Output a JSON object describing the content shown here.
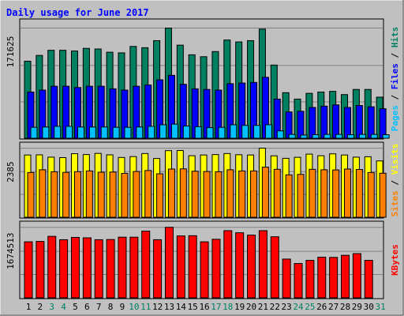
{
  "chart_data": {
    "type": "bar",
    "title": "Daily usage for June 2017",
    "categories": [
      "1",
      "2",
      "3",
      "4",
      "5",
      "6",
      "7",
      "8",
      "9",
      "10",
      "11",
      "12",
      "13",
      "14",
      "15",
      "16",
      "17",
      "18",
      "19",
      "20",
      "21",
      "22",
      "23",
      "24",
      "25",
      "26",
      "27",
      "28",
      "29",
      "30",
      "31"
    ],
    "weekend_days": [
      "3",
      "4",
      "10",
      "11",
      "17",
      "18",
      "24",
      "25",
      "31"
    ],
    "panels": [
      {
        "name": "hits-files-pages",
        "scale_label": "171625",
        "ymax": 171625,
        "grid": true,
        "right_label": [
          {
            "text": "Pages",
            "color": "#00c0ff"
          },
          {
            "text": " / ",
            "color": "#000000"
          },
          {
            "text": "Files",
            "color": "#0000ff"
          },
          {
            "text": " / ",
            "color": "#000000"
          },
          {
            "text": "Hits",
            "color": "#008060"
          }
        ],
        "series": [
          {
            "name": "Hits",
            "color": "#008060",
            "values": [
              120000,
              129000,
              137000,
              137000,
              136000,
              140000,
              139000,
              134000,
              133000,
              143000,
              141000,
              152000,
              171625,
              145000,
              130000,
              127000,
              135000,
              153000,
              150000,
              152000,
              170000,
              114000,
              71000,
              61000,
              70000,
              72000,
              73000,
              68000,
              76000,
              76000,
              64000
            ]
          },
          {
            "name": "Files",
            "color": "#0000ff",
            "values": [
              72000,
              75000,
              81000,
              81000,
              79000,
              81000,
              81000,
              77000,
              75000,
              81000,
              83000,
              91000,
              98000,
              84000,
              77000,
              76000,
              75000,
              85000,
              86000,
              87000,
              95000,
              61000,
              41000,
              42000,
              48000,
              50000,
              52000,
              48000,
              51000,
              49000,
              46000
            ]
          },
          {
            "name": "Pages",
            "color": "#00c0ff",
            "values": [
              17000,
              17500,
              18500,
              18500,
              17500,
              17500,
              17500,
              17000,
              17000,
              17500,
              18500,
              21000,
              22000,
              19000,
              18000,
              16500,
              17000,
              21000,
              20000,
              20000,
              21000,
              11500,
              6000,
              5000,
              5500,
              6000,
              6000,
              5500,
              6000,
              6000,
              5500
            ]
          }
        ]
      },
      {
        "name": "visits-sites",
        "scale_label": "2385",
        "ymax": 2385,
        "grid": true,
        "right_label": [
          {
            "text": "Sites",
            "color": "#ff8000"
          },
          {
            "text": " / ",
            "color": "#000000"
          },
          {
            "text": "Visits",
            "color": "#ffff00"
          }
        ],
        "series": [
          {
            "name": "Visits",
            "color": "#ffff00",
            "values": [
              2150,
              2155,
              2075,
              2060,
              2195,
              2165,
              2205,
              2155,
              2065,
              2095,
              2200,
              2030,
              2300,
              2305,
              2125,
              2150,
              2165,
              2200,
              2160,
              2150,
              2385,
              2120,
              2035,
              2070,
              2180,
              2125,
              2190,
              2150,
              2075,
              2090,
              1945
            ]
          },
          {
            "name": "Sites",
            "color": "#ff8000",
            "values": [
              1545,
              1640,
              1570,
              1550,
              1575,
              1600,
              1555,
              1560,
              1515,
              1580,
              1615,
              1500,
              1665,
              1670,
              1590,
              1580,
              1570,
              1640,
              1600,
              1600,
              1730,
              1655,
              1465,
              1480,
              1655,
              1640,
              1635,
              1665,
              1650,
              1545,
              1520
            ]
          }
        ]
      },
      {
        "name": "kbytes",
        "scale_label": "1674513",
        "ymax": 1674513,
        "grid": true,
        "right_label": [
          {
            "text": "KBytes",
            "color": "#ff0000"
          }
        ],
        "series": [
          {
            "name": "KBytes",
            "color": "#ff0000",
            "values": [
              1330000,
              1340000,
              1460000,
              1380000,
              1435000,
              1425000,
              1380000,
              1385000,
              1440000,
              1440000,
              1585000,
              1380000,
              1674513,
              1470000,
              1475000,
              1330000,
              1390000,
              1595000,
              1545000,
              1490000,
              1595000,
              1450000,
              920000,
              815000,
              890000,
              965000,
              960000,
              1010000,
              1050000,
              890000,
              null
            ]
          }
        ]
      }
    ]
  },
  "colors": {
    "background": "#c0c0c0",
    "plot_background": "#c0c0c0",
    "title": "#0000ff",
    "weekday_label": "#000000",
    "weekend_label": "#008060",
    "grid": "#808080"
  }
}
